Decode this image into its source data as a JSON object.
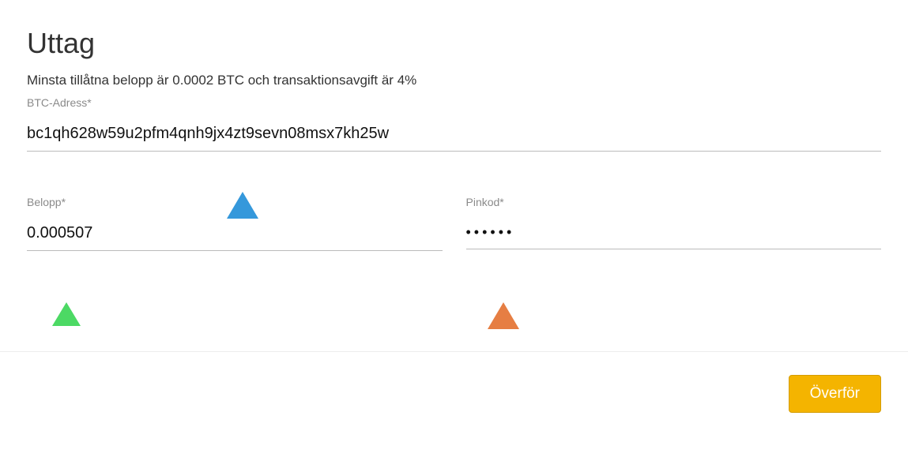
{
  "page": {
    "title": "Uttag",
    "info_text": "Minsta tillåtna belopp är 0.0002 BTC och transaktionsavgift är 4%"
  },
  "fields": {
    "address": {
      "label": "BTC-Adress*",
      "value": "bc1qh628w59u2pfm4qnh9jx4zt9sevn08msx7kh25w"
    },
    "amount": {
      "label": "Belopp*",
      "value": "0.000507"
    },
    "pincode": {
      "label": "Pinkod*",
      "value": "••••••"
    }
  },
  "buttons": {
    "submit": "Överför"
  },
  "colors": {
    "button_bg": "#f4b400",
    "button_border": "#d49c00",
    "button_text": "#ffffff",
    "label_color": "#8a8a8a",
    "underline": "#bbbbbb",
    "divider": "#ededed",
    "marker_blue": "#3598db",
    "marker_green": "#4cd964",
    "marker_orange": "#e67e43"
  }
}
